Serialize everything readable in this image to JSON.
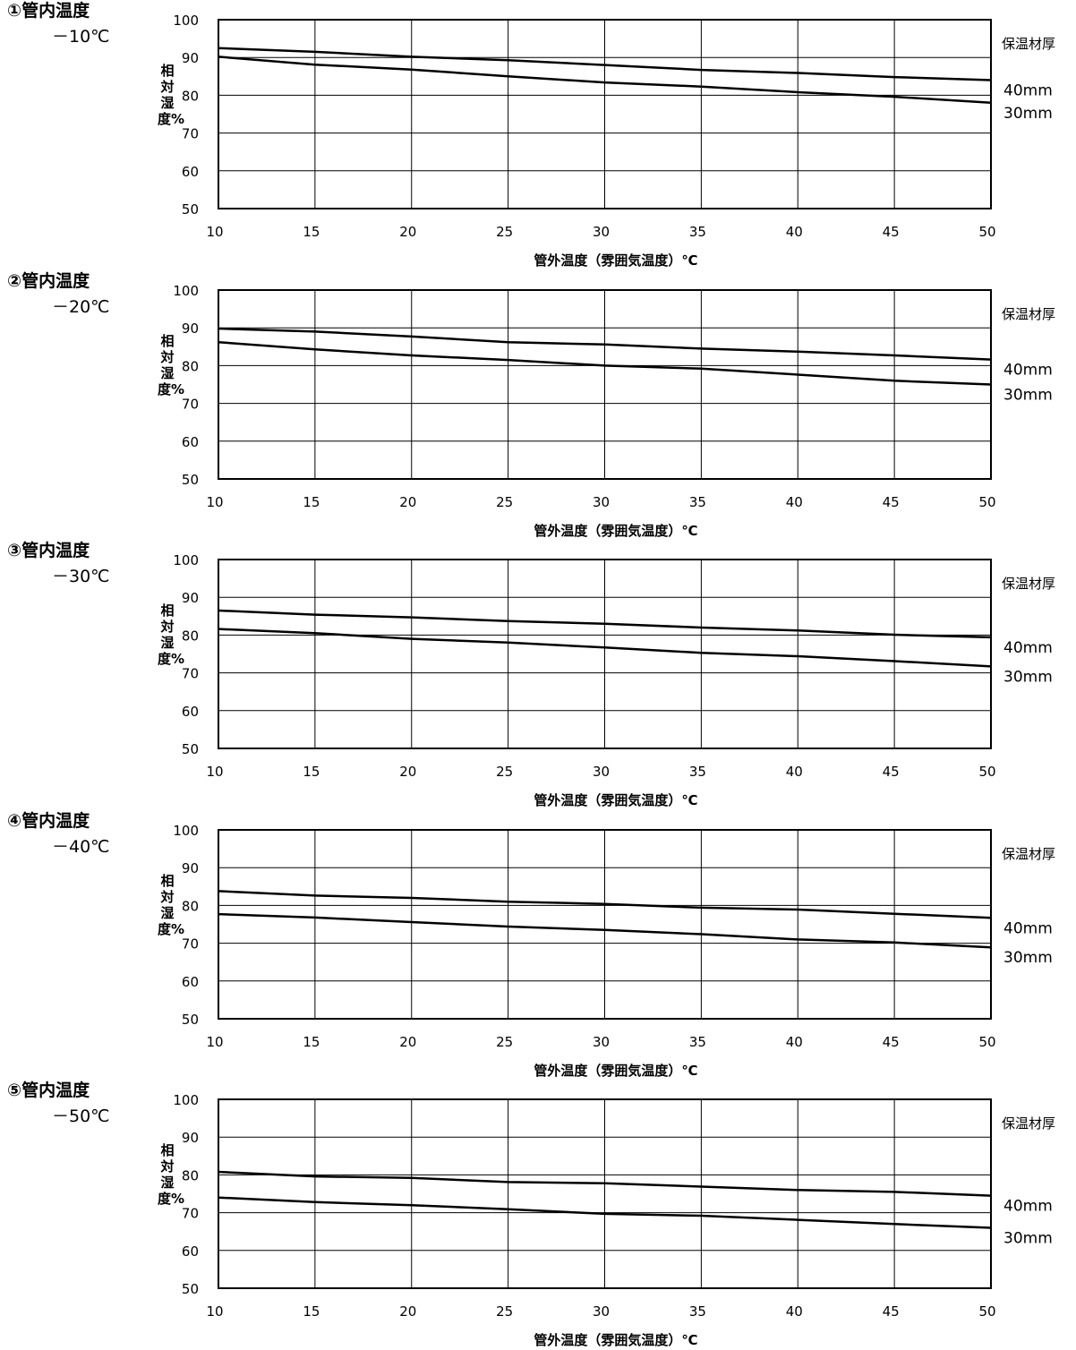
{
  "chart_data": [
    {
      "type": "line",
      "title": "①管内温度",
      "subtitle": "－10℃",
      "xlabel": "管外温度（雰囲気温度）℃",
      "ylabel": "相対湿度%",
      "legend_title": "保温材厚",
      "xlim": [
        10,
        50
      ],
      "ylim": [
        50,
        100
      ],
      "xticks": [
        "10",
        "15",
        "20",
        "25",
        "30",
        "35",
        "40",
        "45",
        "50"
      ],
      "yticks": [
        "50",
        "60",
        "70",
        "80",
        "90",
        "100"
      ],
      "grid": true,
      "x": [
        10,
        15,
        20,
        25,
        30,
        35,
        40,
        45,
        50
      ],
      "series": [
        {
          "name": "40mm",
          "values": [
            92.5,
            91.5,
            90.2,
            89.3,
            88.0,
            86.7,
            85.9,
            84.8,
            84.0
          ]
        },
        {
          "name": "30mm",
          "values": [
            90.2,
            88.1,
            86.8,
            85.0,
            83.4,
            82.3,
            80.8,
            79.6,
            78.0
          ]
        }
      ]
    },
    {
      "type": "line",
      "title": "②管内温度",
      "subtitle": "－20℃",
      "xlabel": "管外温度（雰囲気温度）℃",
      "ylabel": "相対湿度%",
      "legend_title": "保温材厚",
      "xlim": [
        10,
        50
      ],
      "ylim": [
        50,
        100
      ],
      "xticks": [
        "10",
        "15",
        "20",
        "25",
        "30",
        "35",
        "40",
        "45",
        "50"
      ],
      "yticks": [
        "50",
        "60",
        "70",
        "80",
        "90",
        "100"
      ],
      "grid": true,
      "x": [
        10,
        15,
        20,
        25,
        30,
        35,
        40,
        45,
        50
      ],
      "series": [
        {
          "name": "40mm",
          "values": [
            89.8,
            89.0,
            87.7,
            86.2,
            85.6,
            84.5,
            83.7,
            82.7,
            81.6
          ]
        },
        {
          "name": "30mm",
          "values": [
            86.2,
            84.3,
            82.7,
            81.5,
            80.0,
            79.2,
            77.6,
            76.0,
            75.0
          ]
        }
      ]
    },
    {
      "type": "line",
      "title": "③管内温度",
      "subtitle": "－30℃",
      "xlabel": "管外温度（雰囲気温度）℃",
      "ylabel": "相対湿度%",
      "legend_title": "保温材厚",
      "xlim": [
        10,
        50
      ],
      "ylim": [
        50,
        100
      ],
      "xticks": [
        "10",
        "15",
        "20",
        "25",
        "30",
        "35",
        "40",
        "45",
        "50"
      ],
      "yticks": [
        "50",
        "60",
        "70",
        "80",
        "90",
        "100"
      ],
      "grid": true,
      "x": [
        10,
        15,
        20,
        25,
        30,
        35,
        40,
        45,
        50
      ],
      "series": [
        {
          "name": "40mm",
          "values": [
            86.5,
            85.4,
            84.7,
            83.7,
            83.0,
            82.0,
            81.2,
            80.1,
            79.4
          ]
        },
        {
          "name": "30mm",
          "values": [
            81.6,
            80.5,
            79.0,
            78.0,
            76.7,
            75.3,
            74.4,
            73.1,
            71.7
          ]
        }
      ]
    },
    {
      "type": "line",
      "title": "④管内温度",
      "subtitle": "－40℃",
      "xlabel": "管外温度（雰囲気温度）℃",
      "ylabel": "相対湿度%",
      "legend_title": "保温材厚",
      "xlim": [
        10,
        50
      ],
      "ylim": [
        50,
        100
      ],
      "xticks": [
        "10",
        "15",
        "20",
        "25",
        "30",
        "35",
        "40",
        "45",
        "50"
      ],
      "yticks": [
        "50",
        "60",
        "70",
        "80",
        "90",
        "100"
      ],
      "grid": true,
      "x": [
        10,
        15,
        20,
        25,
        30,
        35,
        40,
        45,
        50
      ],
      "series": [
        {
          "name": "40mm",
          "values": [
            83.8,
            82.6,
            82.0,
            81.0,
            80.4,
            79.4,
            78.9,
            77.8,
            76.7
          ]
        },
        {
          "name": "30mm",
          "values": [
            77.7,
            76.8,
            75.6,
            74.4,
            73.5,
            72.4,
            71.0,
            70.2,
            68.9
          ]
        }
      ]
    },
    {
      "type": "line",
      "title": "⑤管内温度",
      "subtitle": "－50℃",
      "xlabel": "管外温度（雰囲気温度）℃",
      "ylabel": "相対湿度%",
      "legend_title": "保温材厚",
      "xlim": [
        10,
        50
      ],
      "ylim": [
        50,
        100
      ],
      "xticks": [
        "10",
        "15",
        "20",
        "25",
        "30",
        "35",
        "40",
        "45",
        "50"
      ],
      "yticks": [
        "50",
        "60",
        "70",
        "80",
        "90",
        "100"
      ],
      "grid": true,
      "x": [
        10,
        15,
        20,
        25,
        30,
        35,
        40,
        45,
        50
      ],
      "series": [
        {
          "name": "40mm",
          "values": [
            80.8,
            79.6,
            79.2,
            78.1,
            77.8,
            76.9,
            76.0,
            75.5,
            74.5
          ]
        },
        {
          "name": "30mm",
          "values": [
            74.0,
            72.8,
            72.0,
            70.9,
            69.7,
            69.2,
            68.1,
            67.0,
            66.0
          ]
        }
      ]
    }
  ]
}
